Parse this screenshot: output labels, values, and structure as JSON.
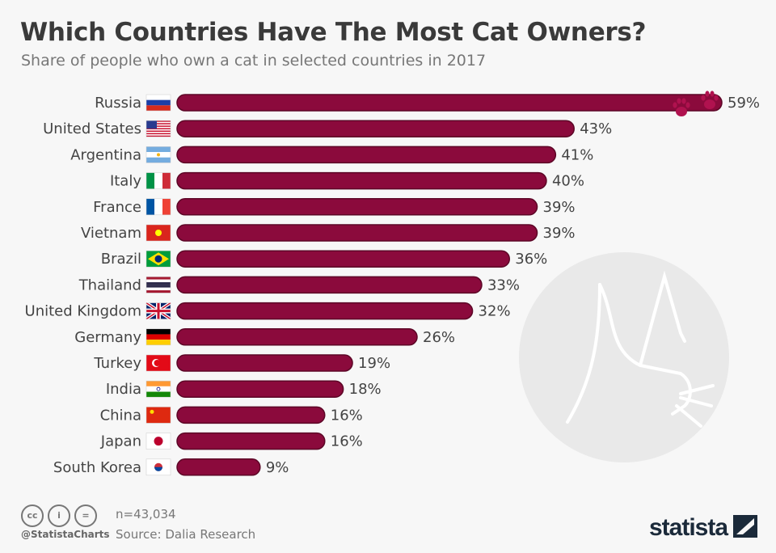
{
  "title": "Which Countries Have The Most Cat Owners?",
  "subtitle": "Share of people who own a cat in selected countries in 2017",
  "footer": {
    "sample": "n=43,034",
    "source": "Source: Dalia Research",
    "handle": "@StatistaCharts",
    "logo": "statista",
    "license_icons": [
      "cc-icon",
      "by-icon",
      "nd-icon"
    ]
  },
  "colors": {
    "bar": "#8b0a3c",
    "bar_outline": "#5c0626",
    "paw": "#b0124f"
  },
  "chart_data": {
    "type": "bar",
    "orientation": "horizontal",
    "title": "Which Countries Have The Most Cat Owners?",
    "subtitle": "Share of people who own a cat in selected countries in 2017",
    "categories": [
      "Russia",
      "United States",
      "Argentina",
      "Italy",
      "France",
      "Vietnam",
      "Brazil",
      "Thailand",
      "United Kingdom",
      "Germany",
      "Turkey",
      "India",
      "China",
      "Japan",
      "South Korea"
    ],
    "values": [
      59,
      43,
      41,
      40,
      39,
      39,
      36,
      33,
      32,
      26,
      19,
      18,
      16,
      16,
      9
    ],
    "labels": [
      "59%",
      "43%",
      "41%",
      "40%",
      "39%",
      "39%",
      "36%",
      "33%",
      "32%",
      "26%",
      "19%",
      "18%",
      "16%",
      "16%",
      "9%"
    ],
    "unit": "%",
    "xlim": [
      0,
      59
    ],
    "grid": false,
    "flags": [
      "russia-flag",
      "usa-flag",
      "argentina-flag",
      "italy-flag",
      "france-flag",
      "vietnam-flag",
      "brazil-flag",
      "thailand-flag",
      "uk-flag",
      "germany-flag",
      "turkey-flag",
      "india-flag",
      "china-flag",
      "japan-flag",
      "south-korea-flag"
    ]
  }
}
